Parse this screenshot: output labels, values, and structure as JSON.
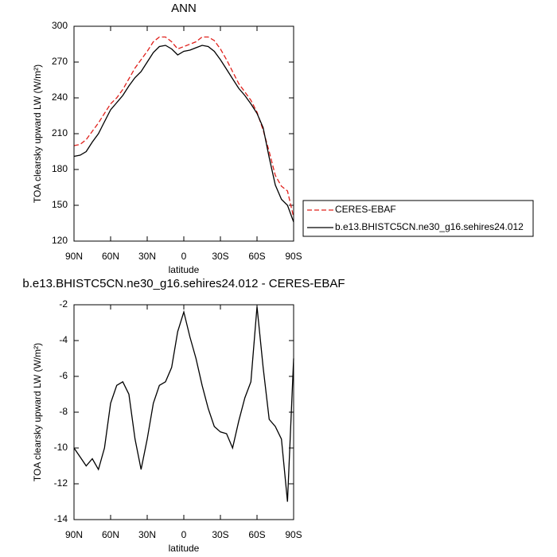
{
  "chart_data": [
    {
      "type": "line",
      "title": "ANN",
      "xlabel": "latitude",
      "ylabel": "TOA clearsky upward LW (W/m²)",
      "x": [
        90,
        85,
        80,
        75,
        70,
        65,
        60,
        55,
        50,
        45,
        40,
        35,
        30,
        25,
        20,
        15,
        10,
        5,
        0,
        -5,
        -10,
        -15,
        -20,
        -25,
        -30,
        -35,
        -40,
        -45,
        -50,
        -55,
        -60,
        -65,
        -70,
        -75,
        -80,
        -85,
        -90
      ],
      "xlim": [
        90,
        -90
      ],
      "xticks": [
        {
          "value": 90,
          "label": "90N"
        },
        {
          "value": 60,
          "label": "60N"
        },
        {
          "value": 30,
          "label": "30N"
        },
        0,
        {
          "value": -30,
          "label": "30S"
        },
        {
          "value": -60,
          "label": "60S"
        },
        {
          "value": -90,
          "label": "90S"
        }
      ],
      "ylim": [
        120,
        300
      ],
      "yticks": [
        120,
        150,
        180,
        210,
        240,
        270,
        300
      ],
      "legend": "right",
      "series": [
        {
          "name": "CERES-EBAF",
          "color": "#e0201b",
          "style": "dashed",
          "values": [
            200,
            201,
            205,
            212,
            219,
            227,
            235,
            240,
            247,
            256,
            265,
            272,
            279,
            287,
            291,
            291,
            287,
            281,
            283,
            285,
            287,
            291,
            291,
            288,
            281,
            272,
            262,
            252,
            245,
            238,
            228,
            213,
            195,
            175,
            166,
            162,
            140
          ]
        },
        {
          "name": "b.e13.BHISTC5CN.ne30_g16.sehires24.012",
          "color": "#000000",
          "style": "solid",
          "values": [
            191,
            192,
            195,
            203,
            210,
            220,
            230,
            236,
            242,
            250,
            257,
            262,
            270,
            278,
            283,
            284,
            281,
            276,
            279,
            280,
            282,
            284,
            283,
            279,
            272,
            264,
            256,
            248,
            242,
            235,
            227,
            215,
            190,
            167,
            155,
            150,
            136
          ]
        }
      ]
    },
    {
      "type": "line",
      "title": "b.e13.BHISTC5CN.ne30_g16.sehires24.012 - CERES-EBAF",
      "xlabel": "latitude",
      "ylabel": "TOA clearsky upward LW (W/m²)",
      "x": [
        90,
        85,
        80,
        75,
        70,
        65,
        60,
        55,
        50,
        45,
        40,
        35,
        30,
        25,
        20,
        15,
        10,
        5,
        0,
        -5,
        -10,
        -15,
        -20,
        -25,
        -30,
        -35,
        -40,
        -45,
        -50,
        -55,
        -60,
        -65,
        -70,
        -75,
        -80,
        -85,
        -90
      ],
      "xlim": [
        90,
        -90
      ],
      "xticks": [
        {
          "value": 90,
          "label": "90N"
        },
        {
          "value": 60,
          "label": "60N"
        },
        {
          "value": 30,
          "label": "30N"
        },
        0,
        {
          "value": -30,
          "label": "30S"
        },
        {
          "value": -60,
          "label": "60S"
        },
        {
          "value": -90,
          "label": "90S"
        }
      ],
      "ylim": [
        -14,
        -2
      ],
      "yticks": [
        -14,
        -12,
        -10,
        -8,
        -6,
        -4,
        -2
      ],
      "series": [
        {
          "color": "#000000",
          "style": "solid",
          "values": [
            -10.0,
            -10.5,
            -11.0,
            -10.6,
            -11.2,
            -10.0,
            -7.5,
            -6.5,
            -6.3,
            -7.0,
            -9.5,
            -11.2,
            -9.5,
            -7.5,
            -6.5,
            -6.3,
            -5.5,
            -3.5,
            -2.4,
            -3.8,
            -5.0,
            -6.5,
            -7.8,
            -8.8,
            -9.1,
            -9.2,
            -10.0,
            -8.5,
            -7.2,
            -6.3,
            -2.1,
            -5.5,
            -8.4,
            -8.8,
            -9.5,
            -13.0,
            -5.0
          ]
        }
      ]
    }
  ]
}
